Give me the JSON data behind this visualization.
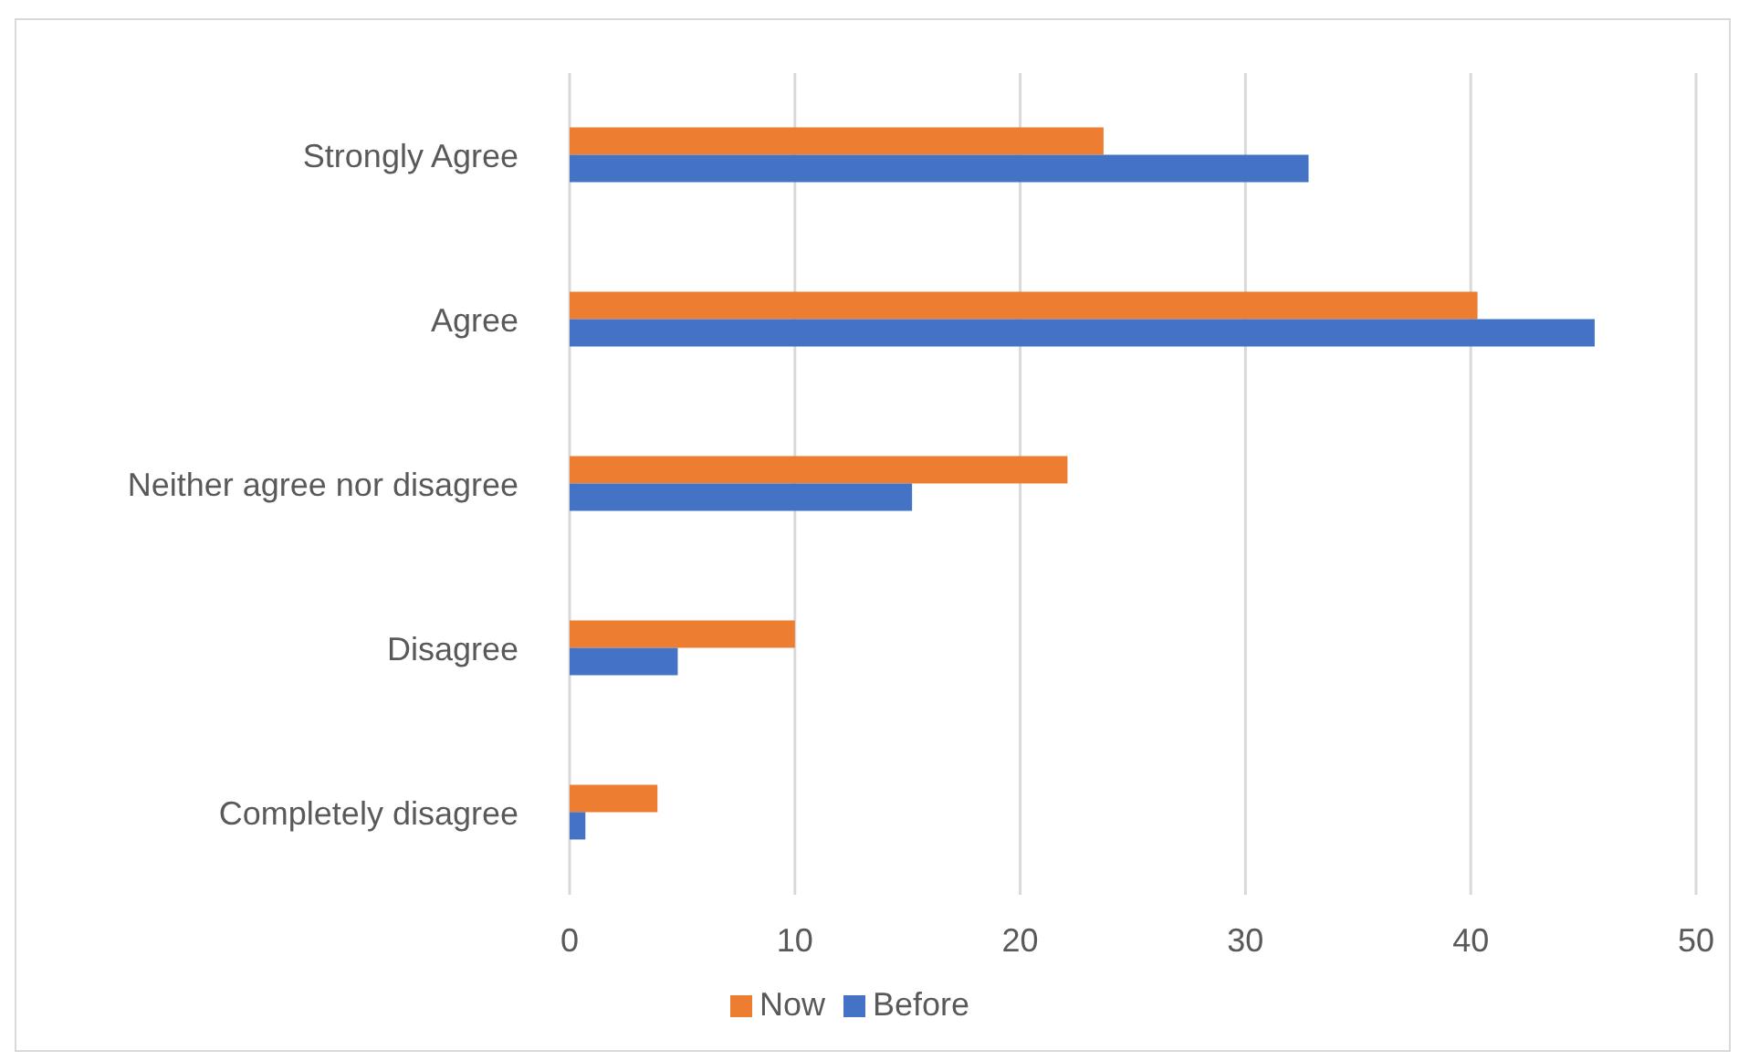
{
  "chart_data": {
    "type": "bar",
    "orientation": "horizontal",
    "categories": [
      "Strongly Agree",
      "Agree",
      "Neither agree nor disagree",
      "Disagree",
      "Completely disagree"
    ],
    "series": [
      {
        "name": "Now",
        "color": "#ed7d31",
        "values": [
          23.7,
          40.3,
          22.1,
          10.0,
          3.9
        ]
      },
      {
        "name": "Before",
        "color": "#4472c4",
        "values": [
          32.8,
          45.5,
          15.2,
          4.8,
          0.7
        ]
      }
    ],
    "xlim": [
      0,
      50
    ],
    "xticks": [
      0,
      10,
      20,
      30,
      40,
      50
    ],
    "grid": "x",
    "legend": "bottom"
  }
}
